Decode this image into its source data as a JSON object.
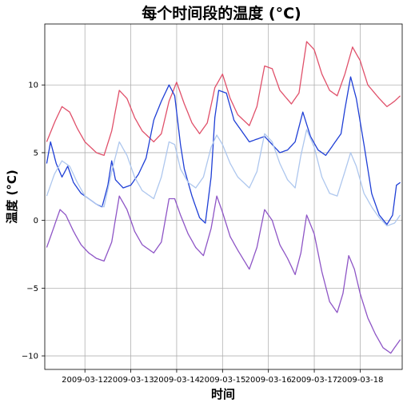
{
  "chart_data": {
    "type": "line",
    "title": "每个时间段的温度 (°C)",
    "xlabel": "时间",
    "ylabel": "温度 (°C)",
    "x_start": "2009-03-11",
    "x_end": "2009-03-18",
    "xlim": [
      "2009-03-11 03:00",
      "2009-03-18 22:00"
    ],
    "ylim": [
      -11,
      14.5
    ],
    "x_ticks": [
      "2009-03-12",
      "2009-03-13",
      "2009-03-14",
      "2009-03-15",
      "2009-03-16",
      "2009-03-17",
      "2009-03-18"
    ],
    "y_ticks": [
      -10,
      -5,
      0,
      5,
      10
    ],
    "y_tick_labels": [
      "−10",
      "−5",
      "0",
      "5",
      "10"
    ],
    "grid": true,
    "legend": "none",
    "series": [
      {
        "color": "#e0506a",
        "points": [
          [
            "2009-03-11 04:00",
            5.8
          ],
          [
            "2009-03-11 08:00",
            7.2
          ],
          [
            "2009-03-11 12:00",
            8.4
          ],
          [
            "2009-03-11 16:00",
            8.0
          ],
          [
            "2009-03-11 20:00",
            6.8
          ],
          [
            "2009-03-12 00:00",
            5.8
          ],
          [
            "2009-03-12 06:00",
            5.0
          ],
          [
            "2009-03-12 10:00",
            4.8
          ],
          [
            "2009-03-12 14:00",
            6.6
          ],
          [
            "2009-03-12 18:00",
            9.6
          ],
          [
            "2009-03-12 22:00",
            9.0
          ],
          [
            "2009-03-13 02:00",
            7.6
          ],
          [
            "2009-03-13 06:00",
            6.6
          ],
          [
            "2009-03-13 12:00",
            5.8
          ],
          [
            "2009-03-13 16:00",
            6.4
          ],
          [
            "2009-03-13 20:00",
            8.8
          ],
          [
            "2009-03-14 00:00",
            10.2
          ],
          [
            "2009-03-14 04:00",
            8.6
          ],
          [
            "2009-03-14 08:00",
            7.2
          ],
          [
            "2009-03-14 12:00",
            6.4
          ],
          [
            "2009-03-14 16:00",
            7.2
          ],
          [
            "2009-03-14 20:00",
            9.8
          ],
          [
            "2009-03-15 00:00",
            10.8
          ],
          [
            "2009-03-15 04:00",
            9.0
          ],
          [
            "2009-03-15 08:00",
            7.8
          ],
          [
            "2009-03-15 14:00",
            7.0
          ],
          [
            "2009-03-15 18:00",
            8.4
          ],
          [
            "2009-03-15 22:00",
            11.4
          ],
          [
            "2009-03-16 02:00",
            11.2
          ],
          [
            "2009-03-16 06:00",
            9.6
          ],
          [
            "2009-03-16 12:00",
            8.6
          ],
          [
            "2009-03-16 16:00",
            9.4
          ],
          [
            "2009-03-16 20:00",
            13.2
          ],
          [
            "2009-03-17 00:00",
            12.6
          ],
          [
            "2009-03-17 04:00",
            10.8
          ],
          [
            "2009-03-17 08:00",
            9.6
          ],
          [
            "2009-03-17 12:00",
            9.2
          ],
          [
            "2009-03-17 16:00",
            10.8
          ],
          [
            "2009-03-17 20:00",
            12.8
          ],
          [
            "2009-03-18 00:00",
            11.8
          ],
          [
            "2009-03-18 04:00",
            10.0
          ],
          [
            "2009-03-18 10:00",
            9.0
          ],
          [
            "2009-03-18 14:00",
            8.4
          ],
          [
            "2009-03-18 18:00",
            8.8
          ],
          [
            "2009-03-18 21:00",
            9.2
          ]
        ]
      },
      {
        "color": "#1f3fd6",
        "points": [
          [
            "2009-03-11 04:00",
            4.2
          ],
          [
            "2009-03-11 06:00",
            5.8
          ],
          [
            "2009-03-11 09:00",
            4.2
          ],
          [
            "2009-03-11 12:00",
            3.2
          ],
          [
            "2009-03-11 15:00",
            4.0
          ],
          [
            "2009-03-11 18:00",
            2.8
          ],
          [
            "2009-03-11 22:00",
            2.0
          ],
          [
            "2009-03-12 02:00",
            1.6
          ],
          [
            "2009-03-12 06:00",
            1.2
          ],
          [
            "2009-03-12 09:00",
            1.0
          ],
          [
            "2009-03-12 12:00",
            2.6
          ],
          [
            "2009-03-12 14:00",
            4.4
          ],
          [
            "2009-03-12 16:00",
            3.0
          ],
          [
            "2009-03-12 20:00",
            2.4
          ],
          [
            "2009-03-13 00:00",
            2.6
          ],
          [
            "2009-03-13 04:00",
            3.4
          ],
          [
            "2009-03-13 08:00",
            4.6
          ],
          [
            "2009-03-13 12:00",
            7.4
          ],
          [
            "2009-03-13 16:00",
            8.8
          ],
          [
            "2009-03-13 20:00",
            10.0
          ],
          [
            "2009-03-13 23:00",
            9.2
          ],
          [
            "2009-03-14 02:00",
            5.6
          ],
          [
            "2009-03-14 04:00",
            3.8
          ],
          [
            "2009-03-14 08:00",
            1.8
          ],
          [
            "2009-03-14 12:00",
            0.2
          ],
          [
            "2009-03-14 15:00",
            -0.2
          ],
          [
            "2009-03-14 18:00",
            3.2
          ],
          [
            "2009-03-14 20:00",
            7.6
          ],
          [
            "2009-03-14 22:00",
            9.6
          ],
          [
            "2009-03-15 02:00",
            9.4
          ],
          [
            "2009-03-15 06:00",
            7.4
          ],
          [
            "2009-03-15 10:00",
            6.6
          ],
          [
            "2009-03-15 14:00",
            5.8
          ],
          [
            "2009-03-15 18:00",
            6.0
          ],
          [
            "2009-03-15 22:00",
            6.2
          ],
          [
            "2009-03-16 02:00",
            5.6
          ],
          [
            "2009-03-16 06:00",
            5.0
          ],
          [
            "2009-03-16 10:00",
            5.2
          ],
          [
            "2009-03-16 14:00",
            5.8
          ],
          [
            "2009-03-16 18:00",
            8.0
          ],
          [
            "2009-03-16 22:00",
            6.2
          ],
          [
            "2009-03-17 02:00",
            5.2
          ],
          [
            "2009-03-17 06:00",
            4.8
          ],
          [
            "2009-03-17 10:00",
            5.6
          ],
          [
            "2009-03-17 14:00",
            6.4
          ],
          [
            "2009-03-17 16:00",
            8.2
          ],
          [
            "2009-03-17 19:00",
            10.6
          ],
          [
            "2009-03-17 22:00",
            9.0
          ],
          [
            "2009-03-18 02:00",
            5.6
          ],
          [
            "2009-03-18 06:00",
            2.0
          ],
          [
            "2009-03-18 10:00",
            0.4
          ],
          [
            "2009-03-18 14:00",
            -0.3
          ],
          [
            "2009-03-18 17:00",
            0.4
          ],
          [
            "2009-03-18 19:00",
            2.6
          ],
          [
            "2009-03-18 21:00",
            2.8
          ]
        ]
      },
      {
        "color": "#aec7ee",
        "points": [
          [
            "2009-03-11 04:00",
            1.8
          ],
          [
            "2009-03-11 08:00",
            3.4
          ],
          [
            "2009-03-11 12:00",
            4.4
          ],
          [
            "2009-03-11 16:00",
            4.0
          ],
          [
            "2009-03-11 20:00",
            2.8
          ],
          [
            "2009-03-12 00:00",
            1.8
          ],
          [
            "2009-03-12 06:00",
            1.2
          ],
          [
            "2009-03-12 10:00",
            1.0
          ],
          [
            "2009-03-12 14:00",
            3.6
          ],
          [
            "2009-03-12 18:00",
            5.8
          ],
          [
            "2009-03-12 22:00",
            4.8
          ],
          [
            "2009-03-13 02:00",
            3.2
          ],
          [
            "2009-03-13 06:00",
            2.2
          ],
          [
            "2009-03-13 12:00",
            1.6
          ],
          [
            "2009-03-13 16:00",
            3.2
          ],
          [
            "2009-03-13 20:00",
            5.8
          ],
          [
            "2009-03-13 23:00",
            5.6
          ],
          [
            "2009-03-14 02:00",
            3.8
          ],
          [
            "2009-03-14 06:00",
            2.8
          ],
          [
            "2009-03-14 10:00",
            2.4
          ],
          [
            "2009-03-14 14:00",
            3.2
          ],
          [
            "2009-03-14 18:00",
            5.4
          ],
          [
            "2009-03-14 21:00",
            6.3
          ],
          [
            "2009-03-15 00:00",
            5.6
          ],
          [
            "2009-03-15 04:00",
            4.2
          ],
          [
            "2009-03-15 08:00",
            3.2
          ],
          [
            "2009-03-15 14:00",
            2.4
          ],
          [
            "2009-03-15 18:00",
            3.6
          ],
          [
            "2009-03-15 22:00",
            6.4
          ],
          [
            "2009-03-16 02:00",
            5.8
          ],
          [
            "2009-03-16 06:00",
            4.2
          ],
          [
            "2009-03-16 10:00",
            3.0
          ],
          [
            "2009-03-16 14:00",
            2.4
          ],
          [
            "2009-03-16 17:00",
            4.8
          ],
          [
            "2009-03-16 20:00",
            6.7
          ],
          [
            "2009-03-17 00:00",
            5.4
          ],
          [
            "2009-03-17 04:00",
            3.2
          ],
          [
            "2009-03-17 08:00",
            2.0
          ],
          [
            "2009-03-17 12:00",
            1.8
          ],
          [
            "2009-03-17 16:00",
            3.6
          ],
          [
            "2009-03-17 19:00",
            5.0
          ],
          [
            "2009-03-17 22:00",
            4.0
          ],
          [
            "2009-03-18 02:00",
            2.0
          ],
          [
            "2009-03-18 06:00",
            1.0
          ],
          [
            "2009-03-18 10:00",
            0.2
          ],
          [
            "2009-03-18 14:00",
            -0.4
          ],
          [
            "2009-03-18 18:00",
            -0.2
          ],
          [
            "2009-03-18 21:00",
            0.4
          ]
        ]
      },
      {
        "color": "#8e55c6",
        "points": [
          [
            "2009-03-11 04:00",
            -2.0
          ],
          [
            "2009-03-11 08:00",
            -0.4
          ],
          [
            "2009-03-11 11:00",
            0.8
          ],
          [
            "2009-03-11 14:00",
            0.4
          ],
          [
            "2009-03-11 18:00",
            -0.8
          ],
          [
            "2009-03-11 22:00",
            -1.8
          ],
          [
            "2009-03-12 02:00",
            -2.4
          ],
          [
            "2009-03-12 06:00",
            -2.8
          ],
          [
            "2009-03-12 10:00",
            -3.0
          ],
          [
            "2009-03-12 14:00",
            -1.6
          ],
          [
            "2009-03-12 18:00",
            1.8
          ],
          [
            "2009-03-12 22:00",
            0.8
          ],
          [
            "2009-03-13 02:00",
            -0.8
          ],
          [
            "2009-03-13 06:00",
            -1.8
          ],
          [
            "2009-03-13 12:00",
            -2.4
          ],
          [
            "2009-03-13 16:00",
            -1.6
          ],
          [
            "2009-03-13 20:00",
            1.6
          ],
          [
            "2009-03-13 23:00",
            1.6
          ],
          [
            "2009-03-14 02:00",
            0.4
          ],
          [
            "2009-03-14 06:00",
            -1.0
          ],
          [
            "2009-03-14 10:00",
            -2.0
          ],
          [
            "2009-03-14 14:00",
            -2.6
          ],
          [
            "2009-03-14 18:00",
            -0.6
          ],
          [
            "2009-03-14 21:00",
            1.8
          ],
          [
            "2009-03-15 00:00",
            0.6
          ],
          [
            "2009-03-15 04:00",
            -1.2
          ],
          [
            "2009-03-15 08:00",
            -2.2
          ],
          [
            "2009-03-15 14:00",
            -3.6
          ],
          [
            "2009-03-15 18:00",
            -2.0
          ],
          [
            "2009-03-15 22:00",
            0.8
          ],
          [
            "2009-03-16 02:00",
            0.0
          ],
          [
            "2009-03-16 06:00",
            -1.8
          ],
          [
            "2009-03-16 10:00",
            -2.8
          ],
          [
            "2009-03-16 14:00",
            -4.0
          ],
          [
            "2009-03-16 17:00",
            -2.4
          ],
          [
            "2009-03-16 20:00",
            0.4
          ],
          [
            "2009-03-17 00:00",
            -1.0
          ],
          [
            "2009-03-17 04:00",
            -3.8
          ],
          [
            "2009-03-17 08:00",
            -6.0
          ],
          [
            "2009-03-17 12:00",
            -6.8
          ],
          [
            "2009-03-17 15:00",
            -5.4
          ],
          [
            "2009-03-17 18:00",
            -2.6
          ],
          [
            "2009-03-17 21:00",
            -3.6
          ],
          [
            "2009-03-18 00:00",
            -5.4
          ],
          [
            "2009-03-18 04:00",
            -7.2
          ],
          [
            "2009-03-18 08:00",
            -8.4
          ],
          [
            "2009-03-18 12:00",
            -9.4
          ],
          [
            "2009-03-18 16:00",
            -9.8
          ],
          [
            "2009-03-18 19:00",
            -9.2
          ],
          [
            "2009-03-18 21:00",
            -8.8
          ]
        ]
      }
    ]
  }
}
